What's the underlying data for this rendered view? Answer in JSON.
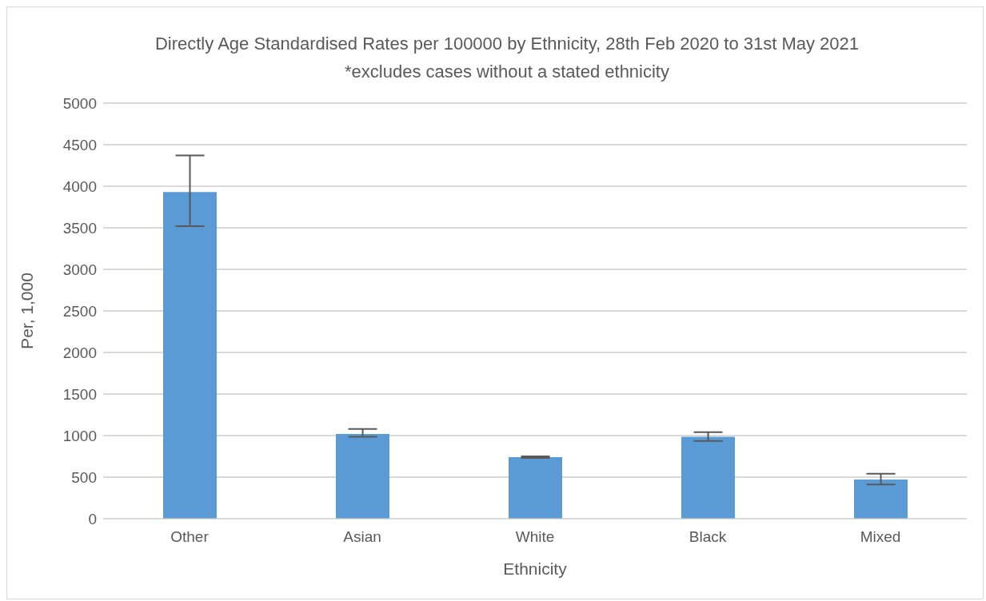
{
  "chart_data": {
    "type": "bar",
    "title": "Directly Age Standardised Rates per 100000 by Ethnicity, 28th Feb 2020 to 31st May 2021    *excludes cases without a stated ethnicity",
    "xlabel": "Ethnicity",
    "ylabel": "Per, 1,000",
    "categories": [
      "Other",
      "Asian",
      "White",
      "Black",
      "Mixed"
    ],
    "values": [
      3930,
      1020,
      740,
      985,
      470
    ],
    "errors": [
      [
        3520,
        4370
      ],
      [
        985,
        1080
      ],
      [
        730,
        750
      ],
      [
        935,
        1040
      ],
      [
        410,
        540
      ]
    ],
    "color": "#5b9bd5",
    "ylim": [
      0,
      5000
    ],
    "yticks": [
      0,
      500,
      1000,
      1500,
      2000,
      2500,
      3000,
      3500,
      4000,
      4500,
      5000
    ],
    "grid": "y"
  }
}
